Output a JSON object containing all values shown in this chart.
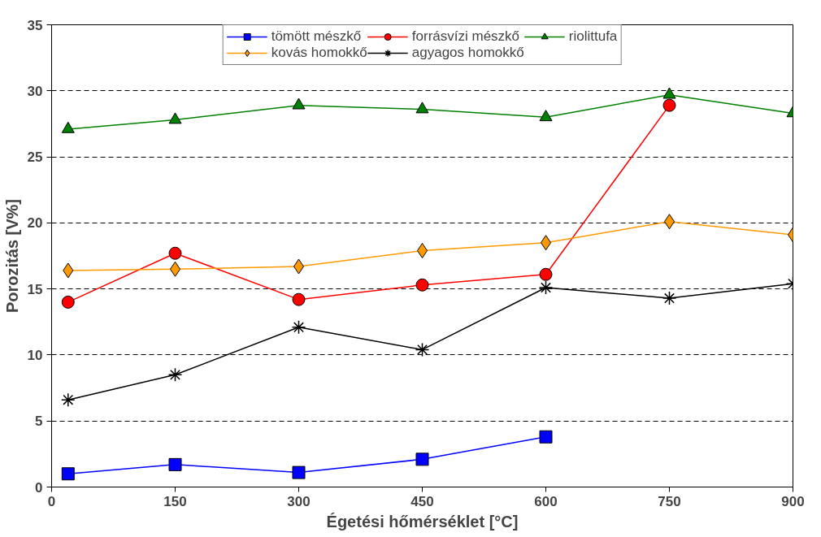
{
  "chart_data": {
    "type": "line",
    "xlabel": "Égetési hőmérséklet [°C]",
    "ylabel": "Porozitás [V%]",
    "x": [
      20,
      150,
      300,
      450,
      600,
      750,
      900
    ],
    "xlim": [
      0,
      900
    ],
    "xticks": [
      0,
      150,
      300,
      450,
      600,
      750,
      900
    ],
    "ylim": [
      0,
      35
    ],
    "yticks": [
      0,
      5,
      10,
      15,
      20,
      25,
      30,
      35
    ],
    "grid": "y",
    "legend": "top",
    "series": [
      {
        "name": "tömött mészkő",
        "color": "#0000ff",
        "marker": "square",
        "values": [
          1.0,
          1.7,
          1.1,
          2.1,
          3.8,
          null,
          null
        ]
      },
      {
        "name": "forrásvízi mészkő",
        "color": "#ff0000",
        "marker": "circle",
        "values": [
          14.0,
          17.7,
          14.2,
          15.3,
          16.1,
          28.9,
          null
        ]
      },
      {
        "name": "riolittufa",
        "color": "#008000",
        "marker": "triangle",
        "values": [
          27.1,
          27.8,
          28.9,
          28.6,
          28.0,
          29.7,
          28.3
        ]
      },
      {
        "name": "kovás homokkő",
        "color": "#ff9900",
        "marker": "diamond",
        "values": [
          16.4,
          16.5,
          16.7,
          17.9,
          18.5,
          20.1,
          19.1
        ]
      },
      {
        "name": "agyagos homokkő",
        "color": "#000000",
        "marker": "cross",
        "values": [
          6.6,
          8.5,
          12.1,
          10.4,
          15.1,
          14.3,
          15.4
        ]
      }
    ]
  }
}
